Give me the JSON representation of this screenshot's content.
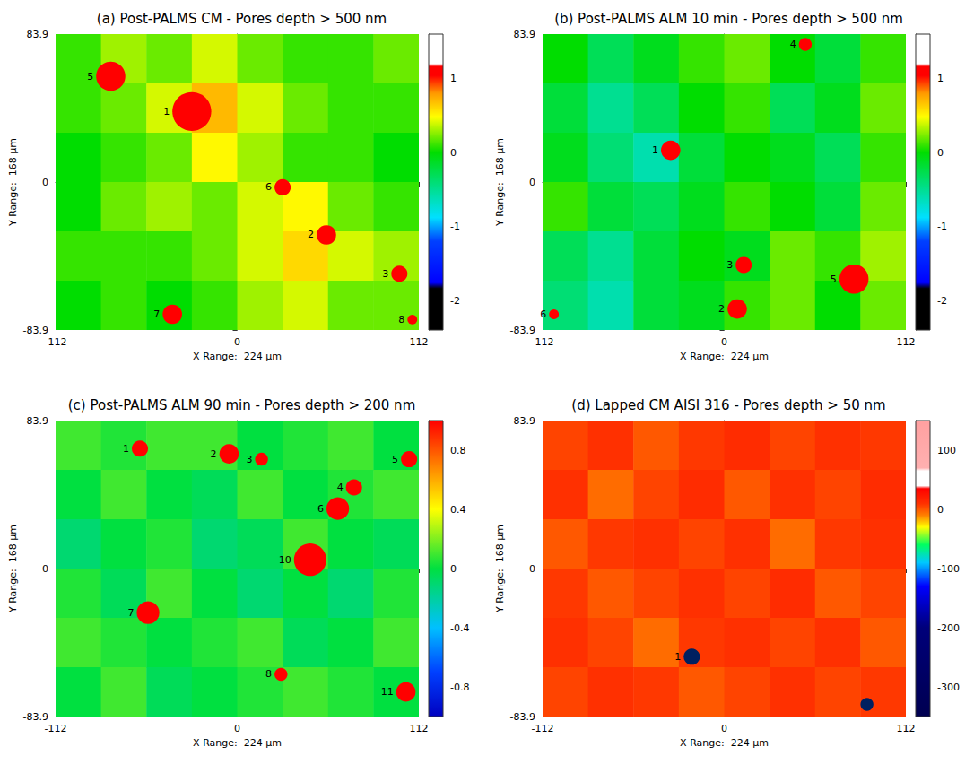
{
  "chart_data": [
    {
      "type": "heatmap",
      "title": "(a) Post-PALMS CM - Pores depth > 500 nm",
      "xlabel": "X Range:  224 µm",
      "ylabel": "Y Range:  168 µm",
      "xlim": [
        -112,
        112
      ],
      "xticks": [
        -112,
        0,
        112
      ],
      "ylim": [
        -83.9,
        83.9
      ],
      "yticks": [
        -83.9,
        0,
        83.9
      ],
      "cells": [
        [
          0.1,
          0.3,
          0.2,
          0.4,
          0.2,
          0.1,
          0.1,
          0.2
        ],
        [
          0.1,
          0.2,
          0.4,
          0.7,
          0.4,
          0.2,
          0.1,
          0.1
        ],
        [
          0.0,
          0.1,
          0.2,
          0.5,
          0.3,
          0.1,
          0.1,
          0.0
        ],
        [
          0.0,
          0.2,
          0.3,
          0.2,
          0.4,
          0.5,
          0.2,
          0.1
        ],
        [
          0.1,
          0.1,
          0.1,
          0.2,
          0.4,
          0.6,
          0.4,
          0.3
        ],
        [
          0.0,
          0.1,
          0.0,
          0.1,
          0.3,
          0.4,
          0.2,
          0.2
        ]
      ],
      "colorbar": {
        "range": [
          -2.4,
          1.6
        ],
        "ticks": [
          -2,
          -1,
          0,
          1
        ]
      },
      "pores": {
        "color": "#ff0000",
        "items": [
          {
            "label": "5",
            "x": -78,
            "y": 60,
            "diameter": 18
          },
          {
            "label": "1",
            "x": -28,
            "y": 40,
            "diameter": 24
          },
          {
            "label": "6",
            "x": 28,
            "y": -3,
            "diameter": 10
          },
          {
            "label": "2",
            "x": 55,
            "y": -30,
            "diameter": 12
          },
          {
            "label": "3",
            "x": 100,
            "y": -52,
            "diameter": 10
          },
          {
            "label": "8",
            "x": 108,
            "y": -78,
            "diameter": 6
          },
          {
            "label": "7",
            "x": -40,
            "y": -75,
            "diameter": 12
          }
        ]
      }
    },
    {
      "type": "heatmap",
      "title": "(b) Post-PALMS ALM 10 min - Pores depth > 500 nm",
      "xlabel": "X Range:  224 µm",
      "ylabel": "Y Range:  168 µm",
      "xlim": [
        -112,
        112
      ],
      "xticks": [
        -112,
        0,
        112
      ],
      "ylim": [
        -83.9,
        83.9
      ],
      "yticks": [
        -83.9,
        0,
        83.9
      ],
      "cells": [
        [
          0.0,
          -0.3,
          -0.1,
          0.1,
          0.2,
          0.0,
          -0.2,
          0.1
        ],
        [
          -0.2,
          -0.5,
          -0.3,
          0.0,
          0.1,
          -0.3,
          -0.1,
          0.2
        ],
        [
          -0.1,
          -0.4,
          -0.6,
          -0.2,
          0.0,
          -0.1,
          -0.3,
          0.1
        ],
        [
          0.1,
          -0.2,
          -0.3,
          -0.1,
          0.1,
          0.0,
          -0.2,
          0.2
        ],
        [
          -0.3,
          -0.5,
          -0.2,
          0.0,
          -0.1,
          0.2,
          0.1,
          0.3
        ],
        [
          -0.4,
          -0.6,
          -0.2,
          -0.1,
          0.1,
          0.2,
          0.0,
          0.2
        ]
      ],
      "colorbar": {
        "range": [
          -2.4,
          1.6
        ],
        "ticks": [
          -2,
          -1,
          0,
          1
        ]
      },
      "pores": {
        "color": "#ff0000",
        "items": [
          {
            "label": "1",
            "x": -33,
            "y": 18,
            "diameter": 12
          },
          {
            "label": "4",
            "x": 50,
            "y": 78,
            "diameter": 8
          },
          {
            "label": "3",
            "x": 12,
            "y": -47,
            "diameter": 10
          },
          {
            "label": "2",
            "x": 8,
            "y": -72,
            "diameter": 12
          },
          {
            "label": "5",
            "x": 80,
            "y": -55,
            "diameter": 18
          },
          {
            "label": "6",
            "x": -105,
            "y": -75,
            "diameter": 6
          }
        ]
      }
    },
    {
      "type": "heatmap",
      "title": "(c) Post-PALMS ALM 90 min - Pores depth > 200 nm",
      "xlabel": "X Range:  224 µm",
      "ylabel": "Y Range:  168 µm",
      "xlim": [
        -112,
        112
      ],
      "xticks": [
        -112,
        0,
        112
      ],
      "ylim": [
        -83.9,
        83.9
      ],
      "yticks": [
        -83.9,
        0,
        83.9
      ],
      "cells": [
        [
          0.1,
          0.05,
          0.1,
          0.1,
          0.0,
          0.05,
          0.1,
          0.0
        ],
        [
          0.0,
          0.1,
          0.0,
          -0.05,
          0.1,
          0.0,
          0.05,
          0.1
        ],
        [
          -0.1,
          0.0,
          0.05,
          -0.1,
          -0.05,
          0.1,
          0.0,
          -0.05
        ],
        [
          0.05,
          -0.05,
          0.1,
          0.0,
          -0.1,
          0.0,
          -0.1,
          0.05
        ],
        [
          0.1,
          0.05,
          0.0,
          0.05,
          0.1,
          -0.05,
          0.0,
          0.1
        ],
        [
          0.0,
          0.1,
          -0.05,
          0.0,
          0.05,
          0.1,
          0.05,
          0.0
        ]
      ],
      "colorbar": {
        "range": [
          -1,
          1
        ],
        "ticks": [
          -0.8,
          -0.4,
          0,
          0.4,
          0.8
        ]
      },
      "pores": {
        "color": "#ff0000",
        "items": [
          {
            "label": "1",
            "x": -60,
            "y": 68,
            "diameter": 10
          },
          {
            "label": "2",
            "x": -5,
            "y": 65,
            "diameter": 12
          },
          {
            "label": "3",
            "x": 15,
            "y": 62,
            "diameter": 8
          },
          {
            "label": "5",
            "x": 106,
            "y": 62,
            "diameter": 10
          },
          {
            "label": "4",
            "x": 72,
            "y": 46,
            "diameter": 10
          },
          {
            "label": "6",
            "x": 62,
            "y": 34,
            "diameter": 14
          },
          {
            "label": "10",
            "x": 45,
            "y": 5,
            "diameter": 20
          },
          {
            "label": "7",
            "x": -55,
            "y": -25,
            "diameter": 14
          },
          {
            "label": "8",
            "x": 27,
            "y": -60,
            "diameter": 8
          },
          {
            "label": "11",
            "x": 104,
            "y": -70,
            "diameter": 12
          }
        ]
      }
    },
    {
      "type": "heatmap",
      "title": "(d) Lapped CM AISI 316 - Pores depth > 50 nm",
      "xlabel": "X Range:  224 µm",
      "ylabel": "Y Range:  168 µm",
      "xlim": [
        -112,
        112
      ],
      "xticks": [
        -112,
        0,
        112
      ],
      "ylim": [
        -83.9,
        83.9
      ],
      "yticks": [
        -83.9,
        0,
        83.9
      ],
      "cells": [
        [
          5,
          10,
          0,
          8,
          12,
          5,
          10,
          8
        ],
        [
          10,
          -5,
          5,
          12,
          0,
          10,
          5,
          12
        ],
        [
          0,
          8,
          10,
          5,
          10,
          -5,
          8,
          10
        ],
        [
          8,
          0,
          5,
          10,
          5,
          12,
          0,
          5
        ],
        [
          10,
          5,
          -5,
          8,
          10,
          5,
          10,
          0
        ],
        [
          5,
          10,
          8,
          0,
          5,
          10,
          5,
          8
        ]
      ],
      "colorbar": {
        "range": [
          -350,
          150
        ],
        "ticks": [
          -300,
          -200,
          -100,
          0,
          100
        ]
      },
      "pores": {
        "color": "#002060",
        "items": [
          {
            "label": "1",
            "x": -20,
            "y": -50,
            "diameter": 10
          },
          {
            "x": 88,
            "y": -77,
            "diameter": 8
          }
        ]
      }
    }
  ]
}
